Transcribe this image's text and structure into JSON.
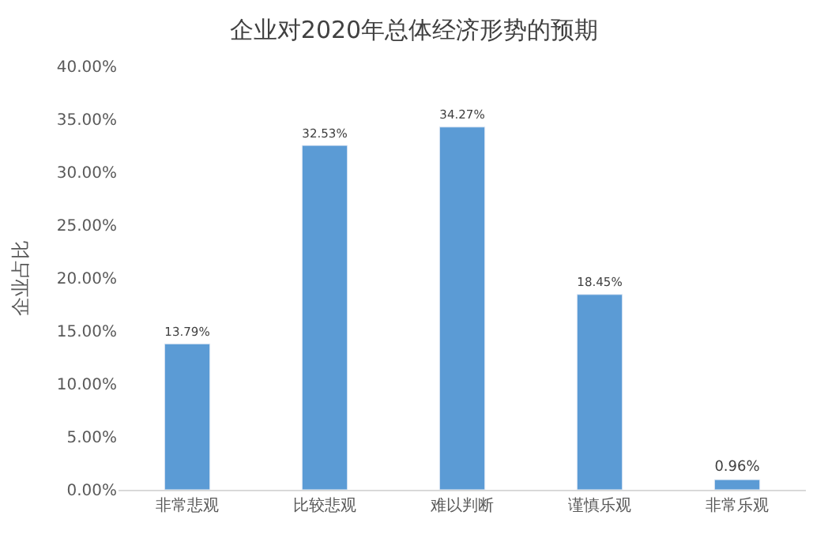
{
  "chart_data": {
    "type": "bar",
    "title": "企业对2020年总体经济形势的预期",
    "ylabel": "企业占比",
    "categories": [
      "非常悲观",
      "比较悲观",
      "难以判断",
      "谨慎乐观",
      "非常乐观"
    ],
    "values": [
      13.79,
      32.53,
      34.27,
      18.45,
      0.96
    ],
    "value_labels": [
      "13.79%",
      "32.53%",
      "34.27%",
      "18.45%",
      "0.96%"
    ],
    "color": "#5b9bd5",
    "ylim": [
      0,
      40
    ],
    "yticks": [
      {
        "value": 0,
        "label": "0.00%"
      },
      {
        "value": 5,
        "label": "5.00%"
      },
      {
        "value": 10,
        "label": "10.00%"
      },
      {
        "value": 15,
        "label": "15.00%"
      },
      {
        "value": 20,
        "label": "20.00%"
      },
      {
        "value": 25,
        "label": "25.00%"
      },
      {
        "value": 30,
        "label": "30.00%"
      },
      {
        "value": 35,
        "label": "35.00%"
      },
      {
        "value": 40,
        "label": "40.00%"
      }
    ],
    "grid": false
  }
}
